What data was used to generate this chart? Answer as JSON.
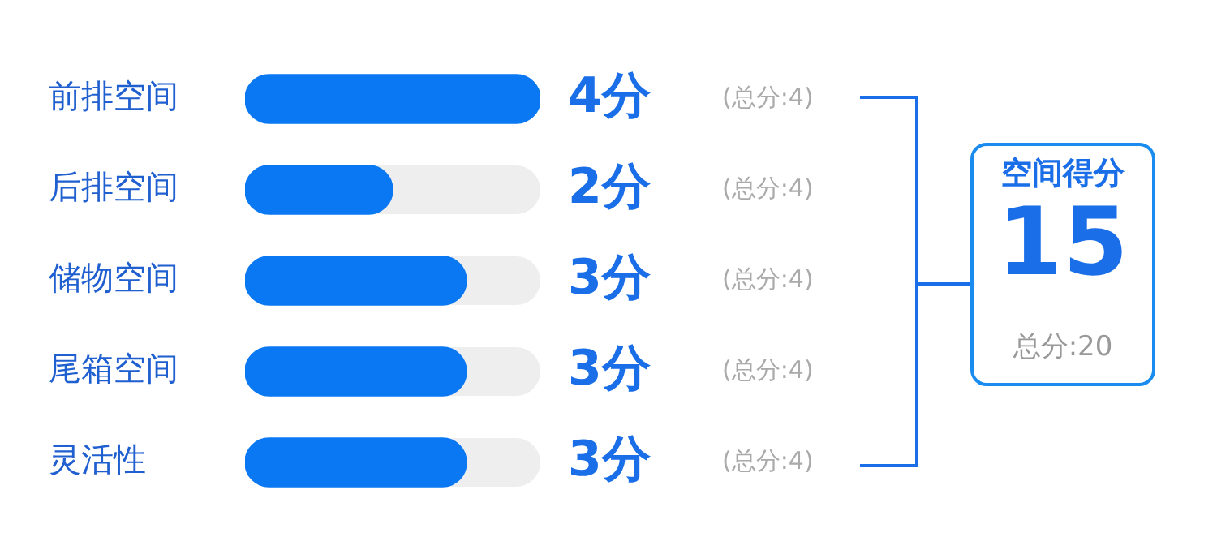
{
  "chart_data": {
    "type": "bar",
    "orientation": "horizontal",
    "categories": [
      "前排空间",
      "后排空间",
      "储物空间",
      "尾箱空间",
      "灵活性"
    ],
    "values": [
      4,
      2,
      3,
      3,
      3
    ],
    "color": "#0a78f2",
    "xlim": [
      0,
      4
    ],
    "value_labels": [
      "4分",
      "2分",
      "3分",
      "3分",
      "3分"
    ],
    "tick_labels": "y",
    "legend": false,
    "annotations": [
      "(总分:4)",
      "(总分:4)",
      "(总分:4)",
      "(总分:4)",
      "(总分:4)",
      "空间得分",
      "15",
      "总分:20"
    ]
  }
}
